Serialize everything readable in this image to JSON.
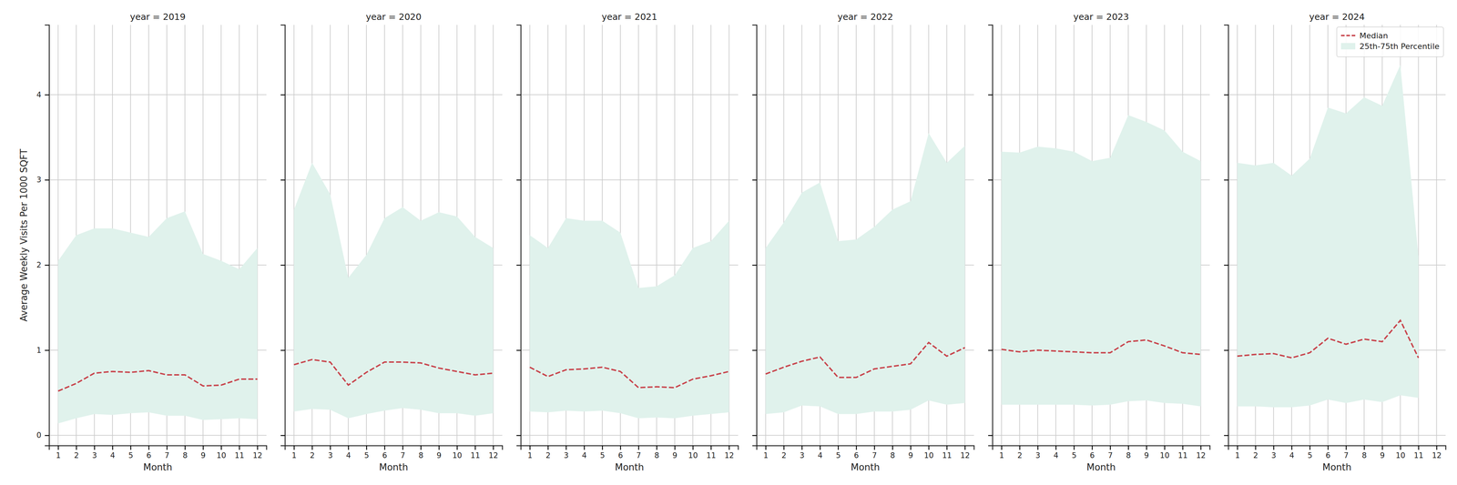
{
  "chart_data": [
    {
      "type": "line",
      "title": "year = 2019",
      "x_label": "Month",
      "y_label": "Average Weekly Visits Per 1000 SQFT",
      "x": [
        1,
        2,
        3,
        4,
        5,
        6,
        7,
        8,
        9,
        10,
        11,
        12
      ],
      "xlim": [
        0.5,
        12.5
      ],
      "xticks": [
        1,
        2,
        3,
        4,
        5,
        6,
        7,
        8,
        9,
        10,
        11,
        12
      ],
      "ylim": [
        -0.12,
        4.82
      ],
      "yticks": [
        0,
        1,
        2,
        3,
        4
      ],
      "grid": true,
      "series": [
        {
          "name": "25th-75th Percentile",
          "type": "area",
          "color": "#e0f2ec",
          "lower": [
            0.14,
            0.2,
            0.25,
            0.24,
            0.26,
            0.27,
            0.23,
            0.23,
            0.18,
            0.19,
            0.2,
            0.19
          ],
          "values": [
            2.05,
            2.35,
            2.43,
            2.43,
            2.38,
            2.33,
            2.55,
            2.63,
            2.13,
            2.05,
            1.95,
            2.2
          ]
        },
        {
          "name": "Median",
          "type": "line",
          "line_style": "dashed",
          "color": "#c8434b",
          "values": [
            0.52,
            0.61,
            0.73,
            0.75,
            0.74,
            0.76,
            0.71,
            0.71,
            0.58,
            0.59,
            0.66,
            0.66
          ]
        }
      ]
    },
    {
      "type": "line",
      "title": "year = 2020",
      "x_label": "Month",
      "tick_labels": "x",
      "x": [
        1,
        2,
        3,
        4,
        5,
        6,
        7,
        8,
        9,
        10,
        11,
        12
      ],
      "xlim": [
        0.5,
        12.5
      ],
      "xticks": [
        1,
        2,
        3,
        4,
        5,
        6,
        7,
        8,
        9,
        10,
        11,
        12
      ],
      "ylim": [
        -0.12,
        4.82
      ],
      "yticks": [
        0,
        1,
        2,
        3,
        4
      ],
      "grid": true,
      "series": [
        {
          "name": "25th-75th Percentile",
          "type": "area",
          "color": "#e0f2ec",
          "lower": [
            0.28,
            0.31,
            0.3,
            0.2,
            0.25,
            0.29,
            0.32,
            0.3,
            0.26,
            0.26,
            0.23,
            0.26
          ],
          "values": [
            2.65,
            3.2,
            2.83,
            1.85,
            2.12,
            2.55,
            2.68,
            2.52,
            2.62,
            2.57,
            2.33,
            2.2
          ]
        },
        {
          "name": "Median",
          "type": "line",
          "line_style": "dashed",
          "color": "#c8434b",
          "values": [
            0.83,
            0.89,
            0.86,
            0.59,
            0.74,
            0.86,
            0.86,
            0.85,
            0.79,
            0.75,
            0.71,
            0.73
          ]
        }
      ]
    },
    {
      "type": "line",
      "title": "year = 2021",
      "x_label": "Month",
      "tick_labels": "x",
      "x": [
        1,
        2,
        3,
        4,
        5,
        6,
        7,
        8,
        9,
        10,
        11,
        12
      ],
      "xlim": [
        0.5,
        12.5
      ],
      "xticks": [
        1,
        2,
        3,
        4,
        5,
        6,
        7,
        8,
        9,
        10,
        11,
        12
      ],
      "ylim": [
        -0.12,
        4.82
      ],
      "yticks": [
        0,
        1,
        2,
        3,
        4
      ],
      "grid": true,
      "series": [
        {
          "name": "25th-75th Percentile",
          "type": "area",
          "color": "#e0f2ec",
          "lower": [
            0.28,
            0.27,
            0.29,
            0.28,
            0.29,
            0.26,
            0.2,
            0.21,
            0.2,
            0.23,
            0.25,
            0.27
          ],
          "values": [
            2.35,
            2.2,
            2.55,
            2.52,
            2.52,
            2.38,
            1.73,
            1.75,
            1.88,
            2.2,
            2.28,
            2.52
          ]
        },
        {
          "name": "Median",
          "type": "line",
          "line_style": "dashed",
          "color": "#c8434b",
          "values": [
            0.8,
            0.69,
            0.77,
            0.78,
            0.8,
            0.75,
            0.56,
            0.57,
            0.56,
            0.66,
            0.7,
            0.75
          ]
        }
      ]
    },
    {
      "type": "line",
      "title": "year = 2022",
      "x_label": "Month",
      "tick_labels": "x",
      "x": [
        1,
        2,
        3,
        4,
        5,
        6,
        7,
        8,
        9,
        10,
        11,
        12
      ],
      "xlim": [
        0.5,
        12.5
      ],
      "xticks": [
        1,
        2,
        3,
        4,
        5,
        6,
        7,
        8,
        9,
        10,
        11,
        12
      ],
      "ylim": [
        -0.12,
        4.82
      ],
      "yticks": [
        0,
        1,
        2,
        3,
        4
      ],
      "grid": true,
      "series": [
        {
          "name": "25th-75th Percentile",
          "type": "area",
          "color": "#e0f2ec",
          "lower": [
            0.25,
            0.27,
            0.35,
            0.34,
            0.25,
            0.25,
            0.28,
            0.28,
            0.3,
            0.41,
            0.36,
            0.38
          ],
          "values": [
            2.2,
            2.5,
            2.85,
            2.97,
            2.28,
            2.3,
            2.45,
            2.65,
            2.75,
            3.55,
            3.2,
            3.4
          ]
        },
        {
          "name": "Median",
          "type": "line",
          "line_style": "dashed",
          "color": "#c8434b",
          "values": [
            0.72,
            0.8,
            0.87,
            0.92,
            0.68,
            0.68,
            0.78,
            0.81,
            0.84,
            1.09,
            0.93,
            1.03
          ]
        }
      ]
    },
    {
      "type": "line",
      "title": "year = 2023",
      "x_label": "Month",
      "tick_labels": "x",
      "x": [
        1,
        2,
        3,
        4,
        5,
        6,
        7,
        8,
        9,
        10,
        11,
        12
      ],
      "xlim": [
        0.5,
        12.5
      ],
      "xticks": [
        1,
        2,
        3,
        4,
        5,
        6,
        7,
        8,
        9,
        10,
        11,
        12
      ],
      "ylim": [
        -0.12,
        4.82
      ],
      "yticks": [
        0,
        1,
        2,
        3,
        4
      ],
      "grid": true,
      "series": [
        {
          "name": "25th-75th Percentile",
          "type": "area",
          "color": "#e0f2ec",
          "lower": [
            0.36,
            0.36,
            0.36,
            0.36,
            0.36,
            0.35,
            0.36,
            0.4,
            0.41,
            0.38,
            0.37,
            0.34
          ],
          "values": [
            3.33,
            3.32,
            3.39,
            3.37,
            3.33,
            3.22,
            3.26,
            3.76,
            3.68,
            3.58,
            3.33,
            3.22
          ]
        },
        {
          "name": "Median",
          "type": "line",
          "line_style": "dashed",
          "color": "#c8434b",
          "values": [
            1.01,
            0.98,
            1.0,
            0.99,
            0.98,
            0.97,
            0.97,
            1.1,
            1.12,
            1.05,
            0.97,
            0.95
          ]
        }
      ]
    },
    {
      "type": "line",
      "title": "year = 2024",
      "x_label": "Month",
      "tick_labels": "x",
      "legend": "upper right",
      "x": [
        1,
        2,
        3,
        4,
        5,
        6,
        7,
        8,
        9,
        10,
        11
      ],
      "xlim": [
        0.5,
        12.5
      ],
      "xticks": [
        1,
        2,
        3,
        4,
        5,
        6,
        7,
        8,
        9,
        10,
        11,
        12
      ],
      "ylim": [
        -0.12,
        4.82
      ],
      "yticks": [
        0,
        1,
        2,
        3,
        4
      ],
      "grid": true,
      "series": [
        {
          "name": "25th-75th Percentile",
          "type": "area",
          "color": "#e0f2ec",
          "lower": [
            0.34,
            0.34,
            0.33,
            0.33,
            0.35,
            0.42,
            0.38,
            0.42,
            0.39,
            0.47,
            0.44
          ],
          "values": [
            3.2,
            3.17,
            3.2,
            3.05,
            3.25,
            3.85,
            3.78,
            3.97,
            3.87,
            4.35,
            2.1
          ]
        },
        {
          "name": "Median",
          "type": "line",
          "line_style": "dashed",
          "color": "#c8434b",
          "values": [
            0.93,
            0.95,
            0.96,
            0.91,
            0.97,
            1.14,
            1.07,
            1.13,
            1.1,
            1.35,
            0.91
          ]
        }
      ]
    }
  ]
}
